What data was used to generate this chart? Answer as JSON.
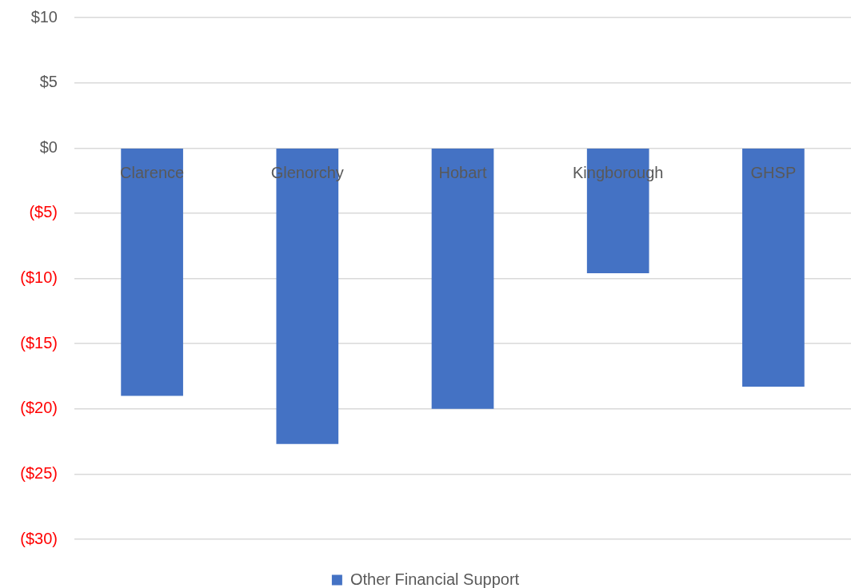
{
  "chart_data": {
    "type": "bar",
    "categories": [
      "Clarence",
      "Glenorchy",
      "Hobart",
      "Kingborough",
      "GHSP"
    ],
    "series": [
      {
        "name": "Other Financial Support",
        "color": "#4472c4",
        "values": [
          -19.0,
          -22.7,
          -20.0,
          -9.6,
          -18.3
        ]
      }
    ],
    "ylim": [
      -30,
      10
    ],
    "yticks": [
      {
        "value": 10,
        "label": "$10"
      },
      {
        "value": 5,
        "label": "$5"
      },
      {
        "value": 0,
        "label": "$0"
      },
      {
        "value": -5,
        "label": "($5)"
      },
      {
        "value": -10,
        "label": "($10)"
      },
      {
        "value": -15,
        "label": "($15)"
      },
      {
        "value": -20,
        "label": "($20)"
      },
      {
        "value": -25,
        "label": "($25)"
      },
      {
        "value": -30,
        "label": "($30)"
      }
    ],
    "grid": "y",
    "legend": "bottom"
  }
}
